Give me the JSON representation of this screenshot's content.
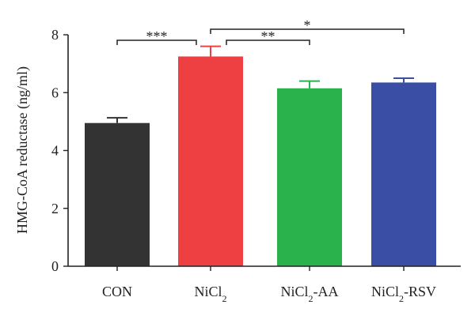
{
  "chart_data": {
    "type": "bar",
    "title": "",
    "xlabel": "",
    "ylabel": "HMG-CoA reductase (ng/ml)",
    "ylim": [
      0,
      8
    ],
    "yticks": [
      0,
      2,
      4,
      6,
      8
    ],
    "grid": false,
    "legend": "none",
    "categories": [
      {
        "base": "CON",
        "sub": "",
        "suffix": ""
      },
      {
        "base": "NiCl",
        "sub": "2",
        "suffix": ""
      },
      {
        "base": "NiCl",
        "sub": "2",
        "suffix": "-AA"
      },
      {
        "base": "NiCl",
        "sub": "2",
        "suffix": "-RSV"
      }
    ],
    "values": [
      4.95,
      7.25,
      6.15,
      6.35
    ],
    "errors": [
      0.18,
      0.35,
      0.25,
      0.15
    ],
    "colors": [
      "#333333",
      "#ee4043",
      "#2ab24c",
      "#3a4ea6"
    ],
    "significance": [
      {
        "from": 0,
        "to": 1,
        "label": "***"
      },
      {
        "from": 1,
        "to": 2,
        "label": "**"
      },
      {
        "from": 1,
        "to": 3,
        "label": "*"
      }
    ]
  }
}
